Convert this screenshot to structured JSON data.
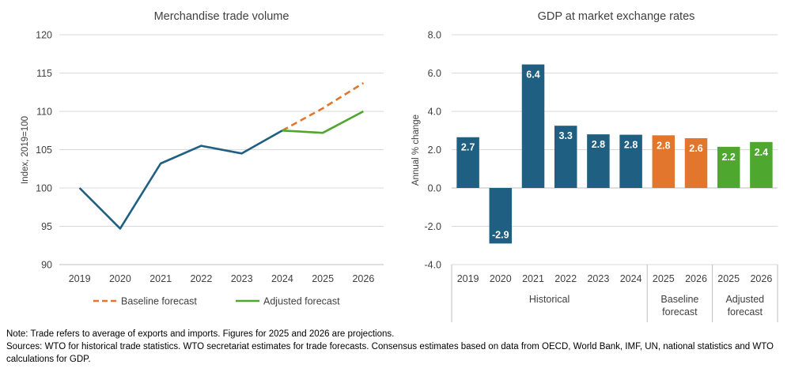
{
  "chart_data": [
    {
      "type": "line",
      "title": "Merchandise trade volume",
      "ylabel": "Index, 2019=100",
      "xlabel": "",
      "ylim": [
        90,
        120
      ],
      "yticks": [
        90,
        95,
        100,
        105,
        110,
        115,
        120
      ],
      "ytick_labels": [
        "90",
        "95",
        "100",
        "105",
        "110",
        "115",
        "120"
      ],
      "categories": [
        "2019",
        "2020",
        "2021",
        "2022",
        "2023",
        "2024",
        "2025",
        "2026"
      ],
      "grid": true,
      "legend_position": "bottom",
      "series": [
        {
          "name": "Historical",
          "color": "#1f5f82",
          "dash": false,
          "x": [
            "2019",
            "2020",
            "2021",
            "2022",
            "2023",
            "2024"
          ],
          "values": [
            100.0,
            94.7,
            103.2,
            105.5,
            104.5,
            107.5
          ]
        },
        {
          "name": "Baseline forecast",
          "color": "#e2762c",
          "dash": true,
          "x": [
            "2024",
            "2025",
            "2026"
          ],
          "values": [
            107.5,
            110.4,
            113.7
          ]
        },
        {
          "name": "Adjusted forecast",
          "color": "#4ea72e",
          "dash": false,
          "x": [
            "2024",
            "2025",
            "2026"
          ],
          "values": [
            107.5,
            107.2,
            110.0
          ]
        }
      ],
      "legend": [
        {
          "label": "Baseline forecast",
          "color": "#e2762c",
          "dash": true
        },
        {
          "label": "Adjusted forecast",
          "color": "#4ea72e",
          "dash": false
        }
      ]
    },
    {
      "type": "bar",
      "title": "GDP at market exchange rates",
      "ylabel": "Annual % change",
      "xlabel": "",
      "ylim": [
        -4.0,
        8.0
      ],
      "yticks": [
        -4,
        -2,
        0,
        2,
        4,
        6,
        8
      ],
      "ytick_labels": [
        "-4.0",
        "-2.0",
        "0.0",
        "2.0",
        "4.0",
        "6.0",
        "8.0"
      ],
      "categories": [
        "2019",
        "2020",
        "2021",
        "2022",
        "2023",
        "2024",
        "2025",
        "2026",
        "2025",
        "2026"
      ],
      "values": [
        2.65,
        -2.9,
        6.45,
        3.25,
        2.8,
        2.78,
        2.75,
        2.6,
        2.15,
        2.4
      ],
      "data_labels": [
        "2.7",
        "-2.9",
        "6.4",
        "3.3",
        "2.8",
        "2.8",
        "2.8",
        "2.6",
        "2.2",
        "2.4"
      ],
      "colors": [
        "#1f5f82",
        "#1f5f82",
        "#1f5f82",
        "#1f5f82",
        "#1f5f82",
        "#1f5f82",
        "#e2762c",
        "#e2762c",
        "#4ea72e",
        "#4ea72e"
      ],
      "groups": [
        {
          "lines": [
            "Historical"
          ],
          "count": 6
        },
        {
          "lines": [
            "Baseline",
            "forecast"
          ],
          "count": 2
        },
        {
          "lines": [
            "Adjusted",
            "forecast"
          ],
          "count": 2
        }
      ],
      "grid": true
    }
  ],
  "notes": {
    "note": "Note: Trade refers to average of exports and imports. Figures for 2025 and 2026 are projections.",
    "sources": "Sources: WTO for historical trade statistics. WTO secretariat estimates for trade forecasts.  Consensus estimates based on data from OECD, World Bank, IMF, UN, national statistics and WTO calculations for GDP."
  }
}
